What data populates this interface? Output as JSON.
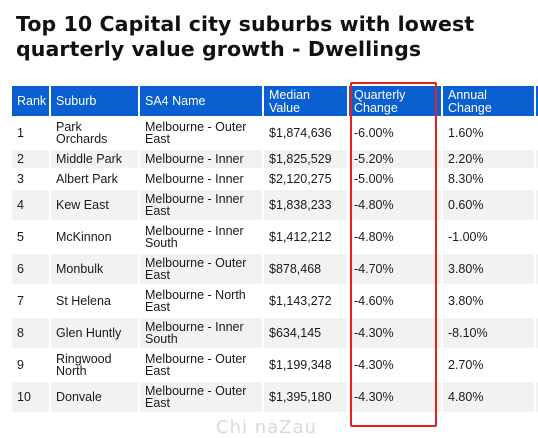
{
  "title": "Top 10 Capital city suburbs with lowest quarterly value growth - Dwellings",
  "table": {
    "headers": [
      "Rank",
      "Suburb",
      "SA4 Name",
      "Median Value",
      "Quarterly Change",
      "Annual Change"
    ],
    "rows": [
      [
        "1",
        "Park Orchards",
        "Melbourne - Outer East",
        "$1,874,636",
        "-6.00%",
        "1.60%"
      ],
      [
        "2",
        "Middle Park",
        "Melbourne - Inner",
        "$1,825,529",
        "-5.20%",
        "2.20%"
      ],
      [
        "3",
        "Albert Park",
        "Melbourne - Inner",
        "$2,120,275",
        "-5.00%",
        "8.30%"
      ],
      [
        "4",
        "Kew East",
        "Melbourne - Inner East",
        "$1,838,233",
        "-4.80%",
        "0.60%"
      ],
      [
        "5",
        "McKinnon",
        "Melbourne - Inner South",
        "$1,412,212",
        "-4.80%",
        "-1.00%"
      ],
      [
        "6",
        "Monbulk",
        "Melbourne - Outer East",
        "$878,468",
        "-4.70%",
        "3.80%"
      ],
      [
        "7",
        "St Helena",
        "Melbourne - North East",
        "$1,143,272",
        "-4.60%",
        "3.80%"
      ],
      [
        "8",
        "Glen Huntly",
        "Melbourne - Inner South",
        "$634,145",
        "-4.30%",
        "-8.10%"
      ],
      [
        "9",
        "Ringwood North",
        "Melbourne - Outer East",
        "$1,199,348",
        "-4.30%",
        "2.70%"
      ],
      [
        "10",
        "Donvale",
        "Melbourne - Outer East",
        "$1,395,180",
        "-4.30%",
        "4.80%"
      ]
    ]
  },
  "highlight": {
    "column": "Quarterly Change",
    "color": "#e62020"
  },
  "colors": {
    "header_bg": "#0a5fd1",
    "header_text": "#ffffff",
    "row_alt_bg": "#f2f2f2"
  },
  "watermark": "Chi naZau"
}
